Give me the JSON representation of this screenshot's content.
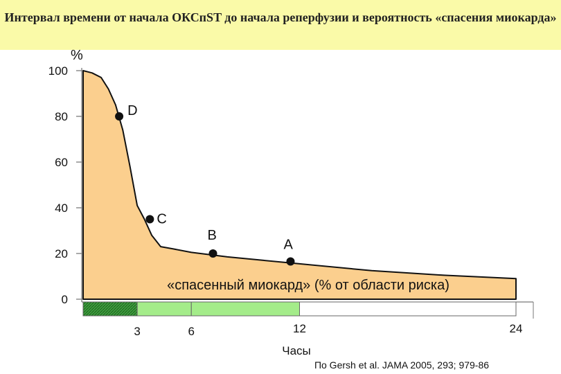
{
  "chart_data": {
    "type": "area",
    "title": "Интервал времени от начала ОКСпST до начала реперфузии и вероятность «спасения миокарда»",
    "ylabel": "%",
    "xlabel": "Часы",
    "ylim": [
      0,
      100
    ],
    "y_ticks": [
      "0",
      "20",
      "40",
      "60",
      "80",
      "100"
    ],
    "x_ticks": [
      {
        "value": 3,
        "label": "3"
      },
      {
        "value": 6,
        "label": "6"
      },
      {
        "value": 12,
        "label": "12"
      },
      {
        "value": 24,
        "label": "24"
      }
    ],
    "curve": [
      {
        "x": 0,
        "y": 100
      },
      {
        "x": 0.5,
        "y": 99
      },
      {
        "x": 1.0,
        "y": 97
      },
      {
        "x": 1.4,
        "y": 92
      },
      {
        "x": 1.8,
        "y": 85
      },
      {
        "x": 2.2,
        "y": 74
      },
      {
        "x": 2.6,
        "y": 58
      },
      {
        "x": 3.0,
        "y": 41
      },
      {
        "x": 3.4,
        "y": 35
      },
      {
        "x": 3.8,
        "y": 28
      },
      {
        "x": 4.3,
        "y": 23
      },
      {
        "x": 5.0,
        "y": 22
      },
      {
        "x": 6.0,
        "y": 20.5
      },
      {
        "x": 8.0,
        "y": 18.5
      },
      {
        "x": 10.0,
        "y": 17
      },
      {
        "x": 12.0,
        "y": 15.5
      },
      {
        "x": 16.0,
        "y": 12.5
      },
      {
        "x": 20.0,
        "y": 10.5
      },
      {
        "x": 24.0,
        "y": 9
      }
    ],
    "points": [
      {
        "label": "D",
        "x": 2.0,
        "y": 80
      },
      {
        "label": "C",
        "x": 3.7,
        "y": 35
      },
      {
        "label": "B",
        "x": 7.2,
        "y": 20
      },
      {
        "label": "A",
        "x": 11.5,
        "y": 16.5
      }
    ],
    "annotation": "«спасенный миокард» (% от области риска)",
    "bands": [
      {
        "from": 0,
        "to": 3,
        "color": "#3e9e3e",
        "pattern": "hatch"
      },
      {
        "from": 3,
        "to": 6,
        "color": "#a4ec8a"
      },
      {
        "from": 6,
        "to": 12,
        "color": "#a4ec8a"
      },
      {
        "from": 12,
        "to": 24,
        "color": "#ffffff"
      }
    ],
    "fill_color": "#fbcf8e",
    "source": "По Gersh et al. JAMA 2005, 293; 979-86"
  }
}
